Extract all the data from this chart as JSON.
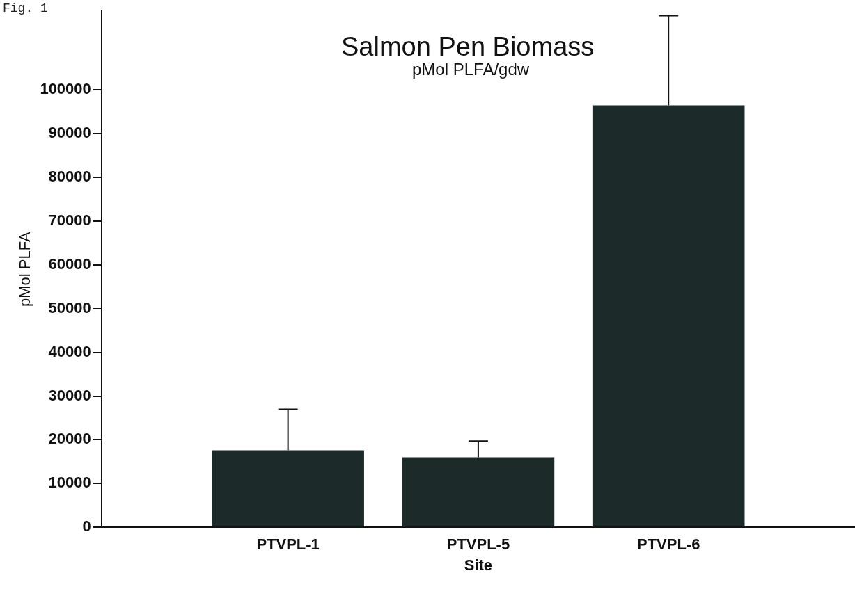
{
  "chart_data": {
    "type": "bar",
    "title": "Salmon Pen Biomass",
    "subtitle": "pMol PLFA/gdw",
    "xlabel": "Site",
    "ylabel": "pMol PLFA",
    "annotations": [
      "Fig. 1"
    ],
    "categories": [
      "PTVPL-1",
      "PTVPL-5",
      "PTVPL-6"
    ],
    "values": [
      17600,
      16000,
      96500
    ],
    "errors": [
      [
        17600,
        27000
      ],
      [
        16000,
        19700
      ],
      [
        96500,
        117000
      ]
    ],
    "color": "#1c2a2a",
    "ylim": [
      0,
      118000
    ],
    "yticks": [
      0,
      10000,
      20000,
      30000,
      40000,
      50000,
      60000,
      70000,
      80000,
      90000,
      100000
    ],
    "grid": false,
    "legend": false
  }
}
